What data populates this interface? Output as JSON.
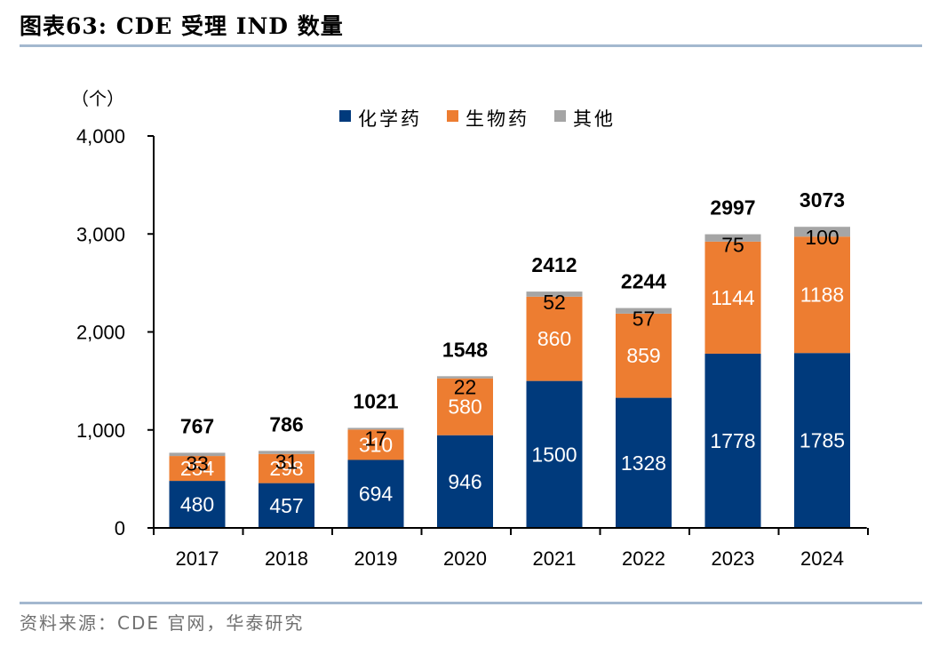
{
  "header": {
    "title": "图表63:  CDE 受理 IND 数量"
  },
  "footer": {
    "source": "资料来源：CDE 官网，华泰研究"
  },
  "chart_data": {
    "type": "bar",
    "stacked": true,
    "title": "图表63:  CDE 受理 IND 数量",
    "xlabel": "",
    "ylabel": "（个）",
    "ylim": [
      0,
      4000
    ],
    "yticks": [
      0,
      1000,
      2000,
      3000,
      4000
    ],
    "ytick_labels": [
      "0",
      "1,000",
      "2,000",
      "3,000",
      "4,000"
    ],
    "grid": false,
    "legend_position": "top-center",
    "categories": [
      "2017",
      "2018",
      "2019",
      "2020",
      "2021",
      "2022",
      "2023",
      "2024"
    ],
    "series": [
      {
        "name": "化学药",
        "color": "#003a7c",
        "label_color": "#ffffff",
        "values": [
          480,
          457,
          694,
          946,
          1500,
          1328,
          1778,
          1785
        ]
      },
      {
        "name": "生物药",
        "color": "#ed7d31",
        "label_color": "#ffffff",
        "values": [
          254,
          298,
          310,
          580,
          860,
          859,
          1144,
          1188
        ]
      },
      {
        "name": "其他",
        "color": "#a5a5a5",
        "label_color": "#000000",
        "values": [
          33,
          31,
          17,
          22,
          52,
          57,
          75,
          100
        ]
      }
    ],
    "totals": [
      767,
      786,
      1021,
      1548,
      2412,
      2244,
      2997,
      3073
    ]
  }
}
